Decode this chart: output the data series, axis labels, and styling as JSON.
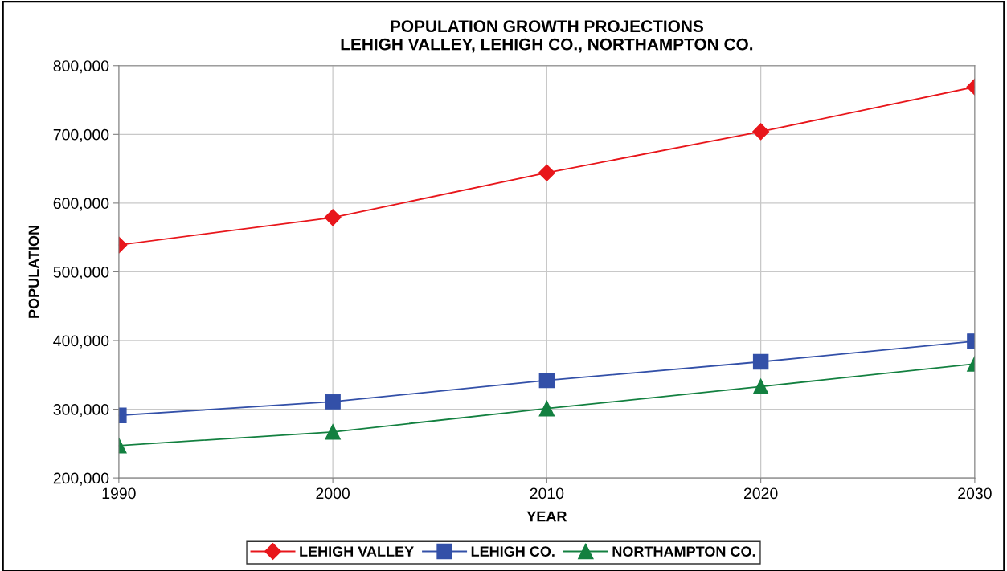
{
  "chart_data": {
    "type": "line",
    "title": "POPULATION GROWTH PROJECTIONS\nLEHIGH VALLEY, LEHIGH CO., NORTHAMPTON CO.",
    "xlabel": "YEAR",
    "ylabel": "POPULATION",
    "x": [
      1990,
      2000,
      2010,
      2020,
      2030
    ],
    "series": [
      {
        "name": "LEHIGH VALLEY",
        "color": "#e8161b",
        "marker": "diamond",
        "values": [
          539000,
          579000,
          644000,
          704000,
          769000
        ]
      },
      {
        "name": "LEHIGH CO.",
        "color": "#3350a8",
        "marker": "square",
        "values": [
          291000,
          311000,
          342000,
          369000,
          399000
        ]
      },
      {
        "name": "NORTHAMPTON CO.",
        "color": "#138040",
        "marker": "triangle",
        "values": [
          247000,
          267000,
          301000,
          333000,
          366000
        ]
      }
    ],
    "xlim": [
      1990,
      2030
    ],
    "xticks": [
      1990,
      2000,
      2010,
      2020,
      2030
    ],
    "ylim": [
      200000,
      800000
    ],
    "yticks": [
      {
        "value": 200000,
        "label": "200,000"
      },
      {
        "value": 300000,
        "label": "300,000"
      },
      {
        "value": 400000,
        "label": "400,000"
      },
      {
        "value": 500000,
        "label": "500,000"
      },
      {
        "value": 600000,
        "label": "600,000"
      },
      {
        "value": 700000,
        "label": "700,000"
      },
      {
        "value": 800000,
        "label": "800,000"
      }
    ],
    "grid": true,
    "legend": "bottom",
    "line_style": "solid"
  }
}
